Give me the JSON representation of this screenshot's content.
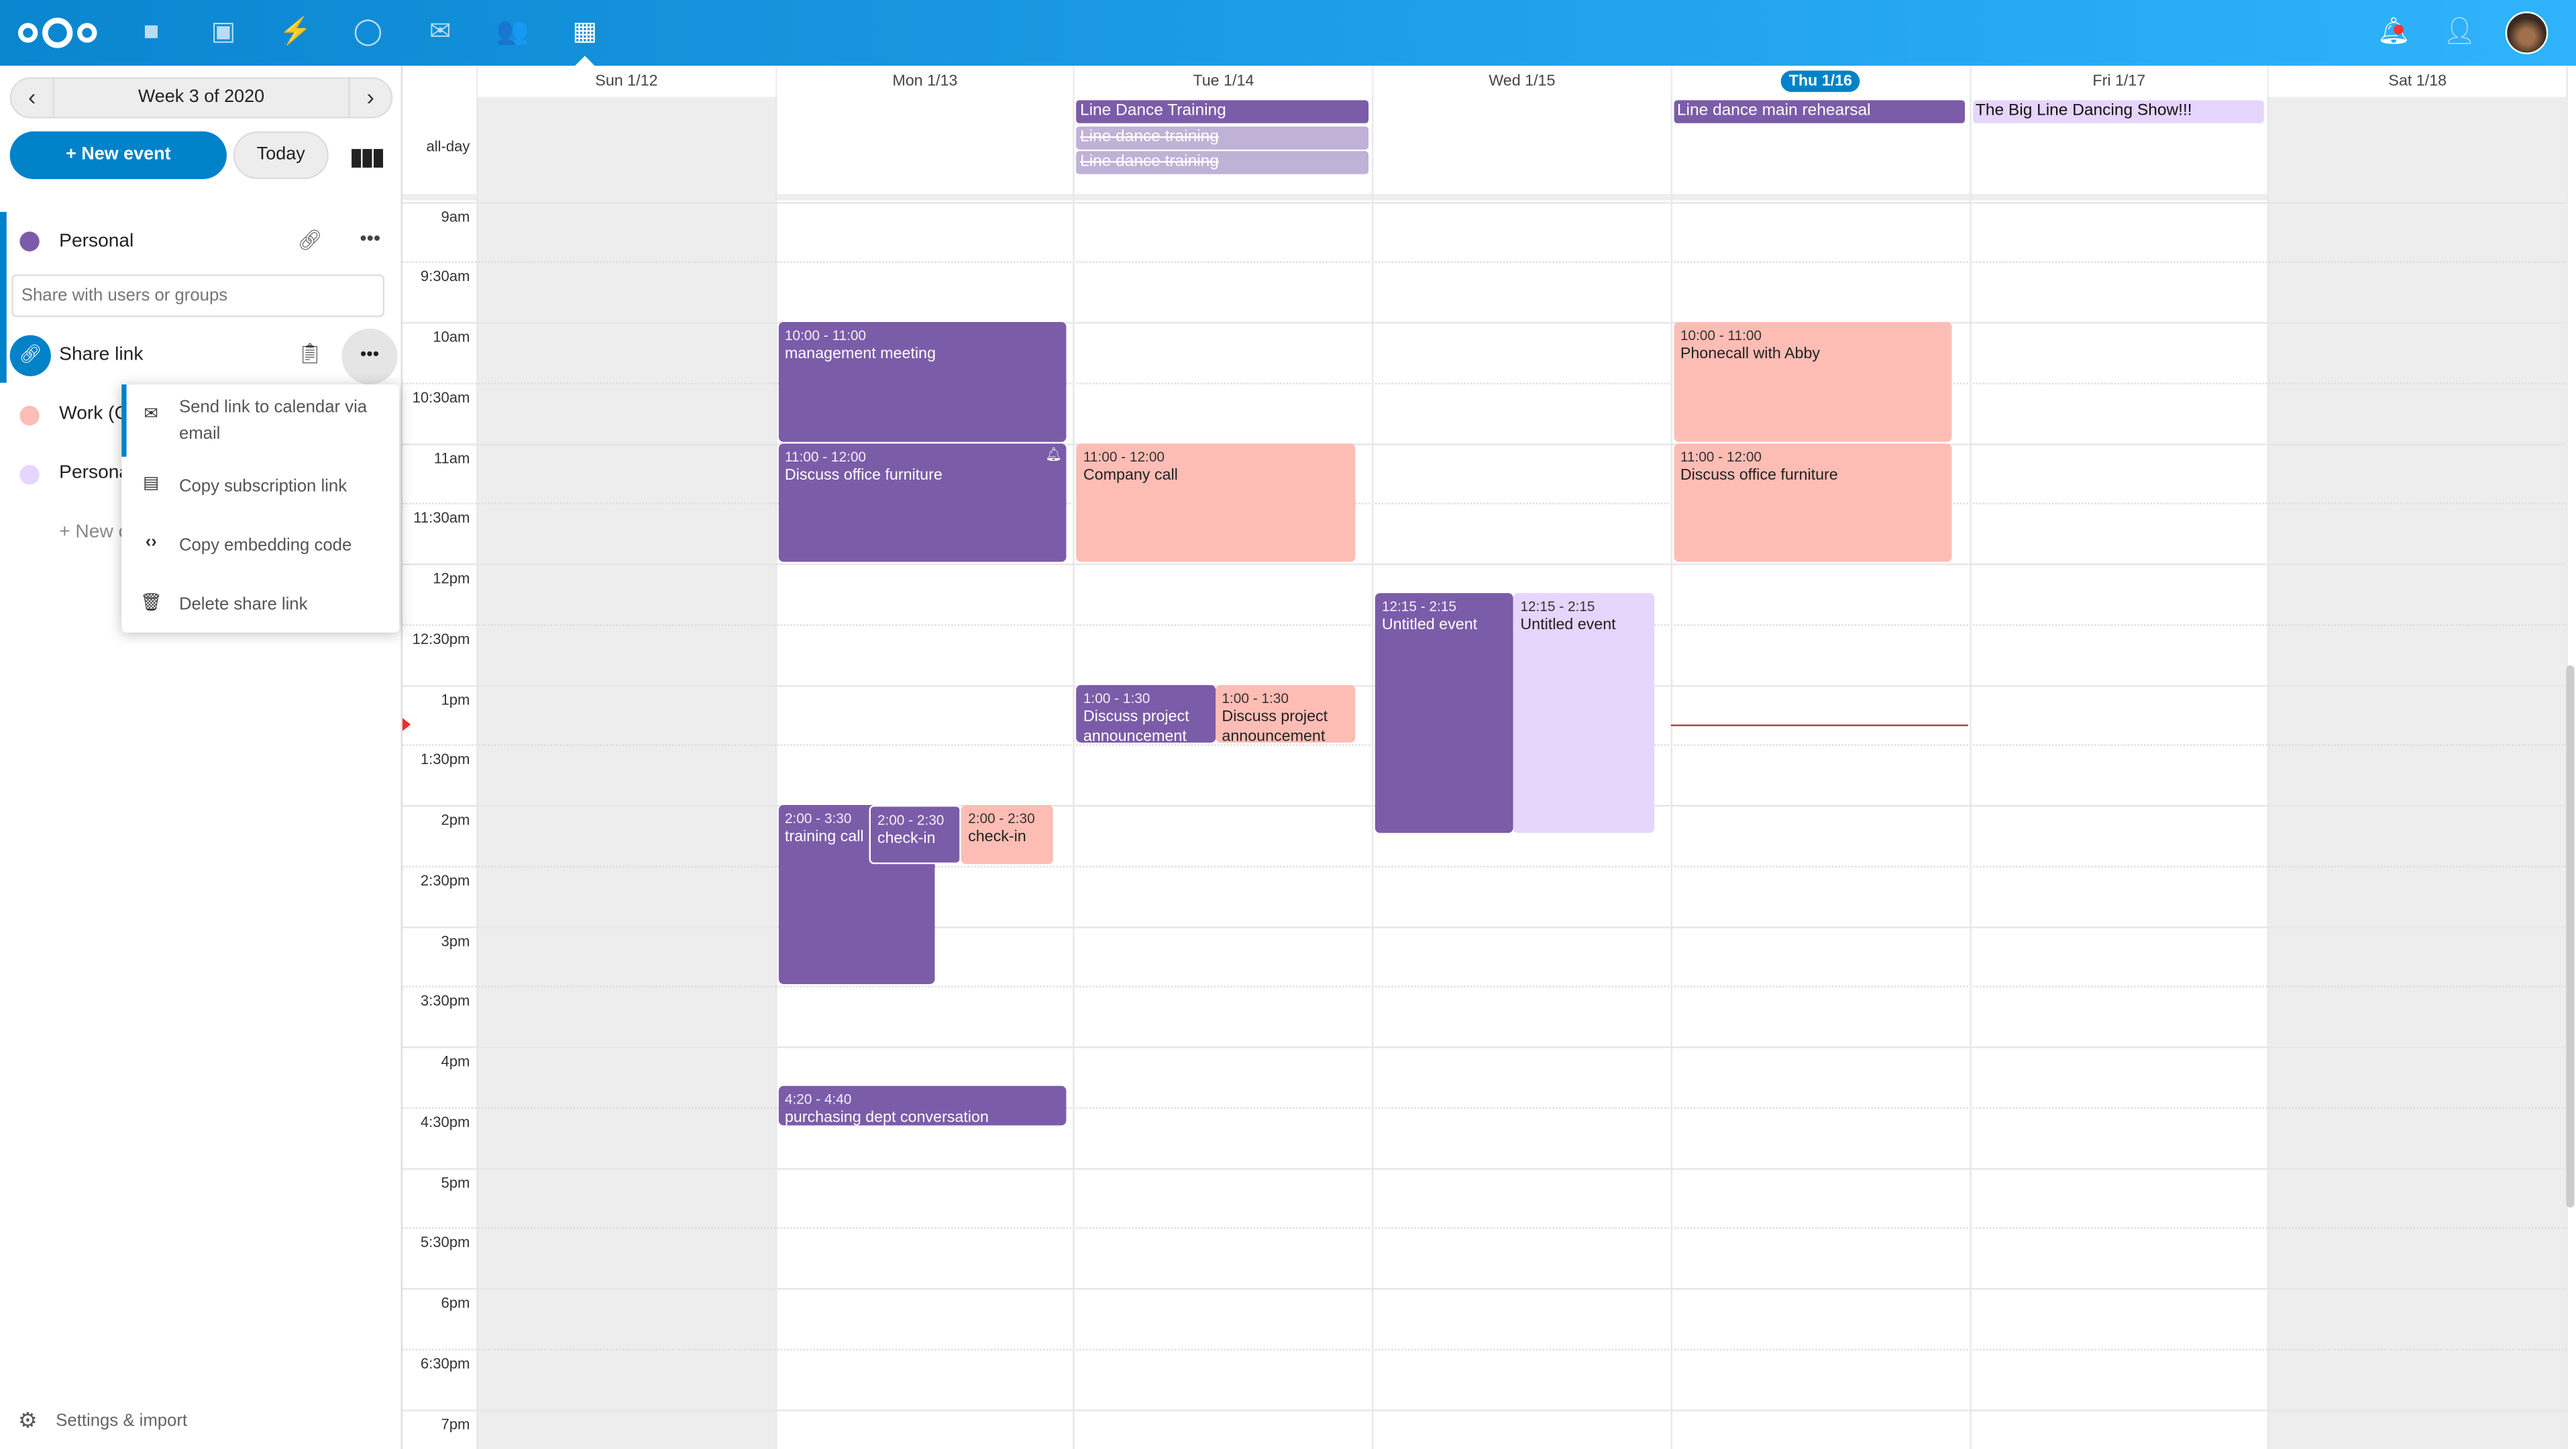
{
  "header": {
    "apps": [
      "files-icon",
      "photos-icon",
      "activity-icon",
      "talk-icon",
      "mail-icon",
      "contacts-icon",
      "calendar-icon"
    ],
    "right": [
      "notifications-icon",
      "contacts-menu-icon",
      "avatar"
    ],
    "accent": "#0082c9"
  },
  "sidebar": {
    "week_label": "Week 3 of 2020",
    "new_event": "+ New event",
    "today": "Today",
    "calendars": [
      {
        "name": "Personal",
        "color": "#7b5ca9"
      },
      {
        "name": "Work (C",
        "color": "#fdbdb5"
      },
      {
        "name": "Persona",
        "color": "#e6d5fd"
      }
    ],
    "share_placeholder": "Share with users or groups",
    "share_link": "Share link",
    "new_calendar": "+ New c",
    "menu": [
      {
        "icon": "mail-icon",
        "label": "Send link to calendar via email"
      },
      {
        "icon": "calendar-icon",
        "label": "Copy subscription link"
      },
      {
        "icon": "code-icon",
        "label": "Copy embedding code"
      },
      {
        "icon": "trash-icon",
        "label": "Delete share link"
      }
    ],
    "settings": "Settings & import"
  },
  "calendar": {
    "days": [
      "Sun 1/12",
      "Mon 1/13",
      "Tue 1/14",
      "Wed 1/15",
      "Thu 1/16",
      "Fri 1/17",
      "Sat 1/18"
    ],
    "today_index": 4,
    "allday_label": "all-day",
    "times": [
      "9am",
      "9:30am",
      "10am",
      "10:30am",
      "11am",
      "11:30am",
      "12pm",
      "12:30pm",
      "1pm",
      "1:30pm",
      "2pm",
      "2:30pm",
      "3pm",
      "3:30pm",
      "4pm",
      "4:30pm",
      "5pm",
      "5:30pm",
      "6pm",
      "6:30pm",
      "7pm"
    ],
    "allday": [
      {
        "day": 2,
        "title": "Line Dance Training",
        "style": "purple"
      },
      {
        "day": 2,
        "title": "Line dance training",
        "style": "cancelled"
      },
      {
        "day": 2,
        "title": "Line dance training",
        "style": "cancelled"
      },
      {
        "day": 4,
        "title": "Line dance main rehearsal",
        "style": "purple"
      },
      {
        "day": 5,
        "title": "The Big Line Dancing Show!!!",
        "style": "lavender"
      }
    ],
    "events": [
      {
        "day": 1,
        "time": "10:00 - 11:00",
        "title": "management meeting",
        "start": 10,
        "end": 11
      },
      {
        "day": 1,
        "time": "11:00 - 12:00",
        "title": "Discuss office furniture",
        "start": 11,
        "end": 12,
        "alarm": true
      },
      {
        "day": 1,
        "time": "2:00 - 3:30",
        "title": "training call",
        "start": 14,
        "end": 15.5
      },
      {
        "day": 1,
        "time": "2:00 - 2:30",
        "title": "check-in",
        "start": 14,
        "end": 14.5
      },
      {
        "day": 1,
        "time": "2:00 - 2:30",
        "title": "check-in",
        "start": 14,
        "end": 14.5
      },
      {
        "day": 1,
        "time": "4:20 - 4:40",
        "title": "purchasing dept conversation",
        "start": 16.333,
        "end": 16.667
      },
      {
        "day": 2,
        "time": "11:00 - 12:00",
        "title": "Company call",
        "start": 11,
        "end": 12
      },
      {
        "day": 2,
        "time": "1:00 - 1:30",
        "title": "Discuss project announcement",
        "start": 13,
        "end": 13.5
      },
      {
        "day": 2,
        "time": "1:00 - 1:30",
        "title": "Discuss project announcement",
        "start": 13,
        "end": 13.5
      },
      {
        "day": 3,
        "time": "12:15 - 2:15",
        "title": "Untitled event",
        "start": 12.25,
        "end": 14.25
      },
      {
        "day": 3,
        "time": "12:15 - 2:15",
        "title": "Untitled event",
        "start": 12.25,
        "end": 14.25
      },
      {
        "day": 4,
        "time": "10:00 - 11:00",
        "title": "Phonecall with Abby",
        "start": 10,
        "end": 11
      },
      {
        "day": 4,
        "time": "11:00 - 12:00",
        "title": "Discuss office furniture",
        "start": 11,
        "end": 12
      }
    ],
    "now": 13.33,
    "colors": {
      "purple": "#7b5ca9",
      "pink": "#fdbdb5",
      "lavender": "#e6d5fd",
      "now": "#e9322d"
    }
  }
}
